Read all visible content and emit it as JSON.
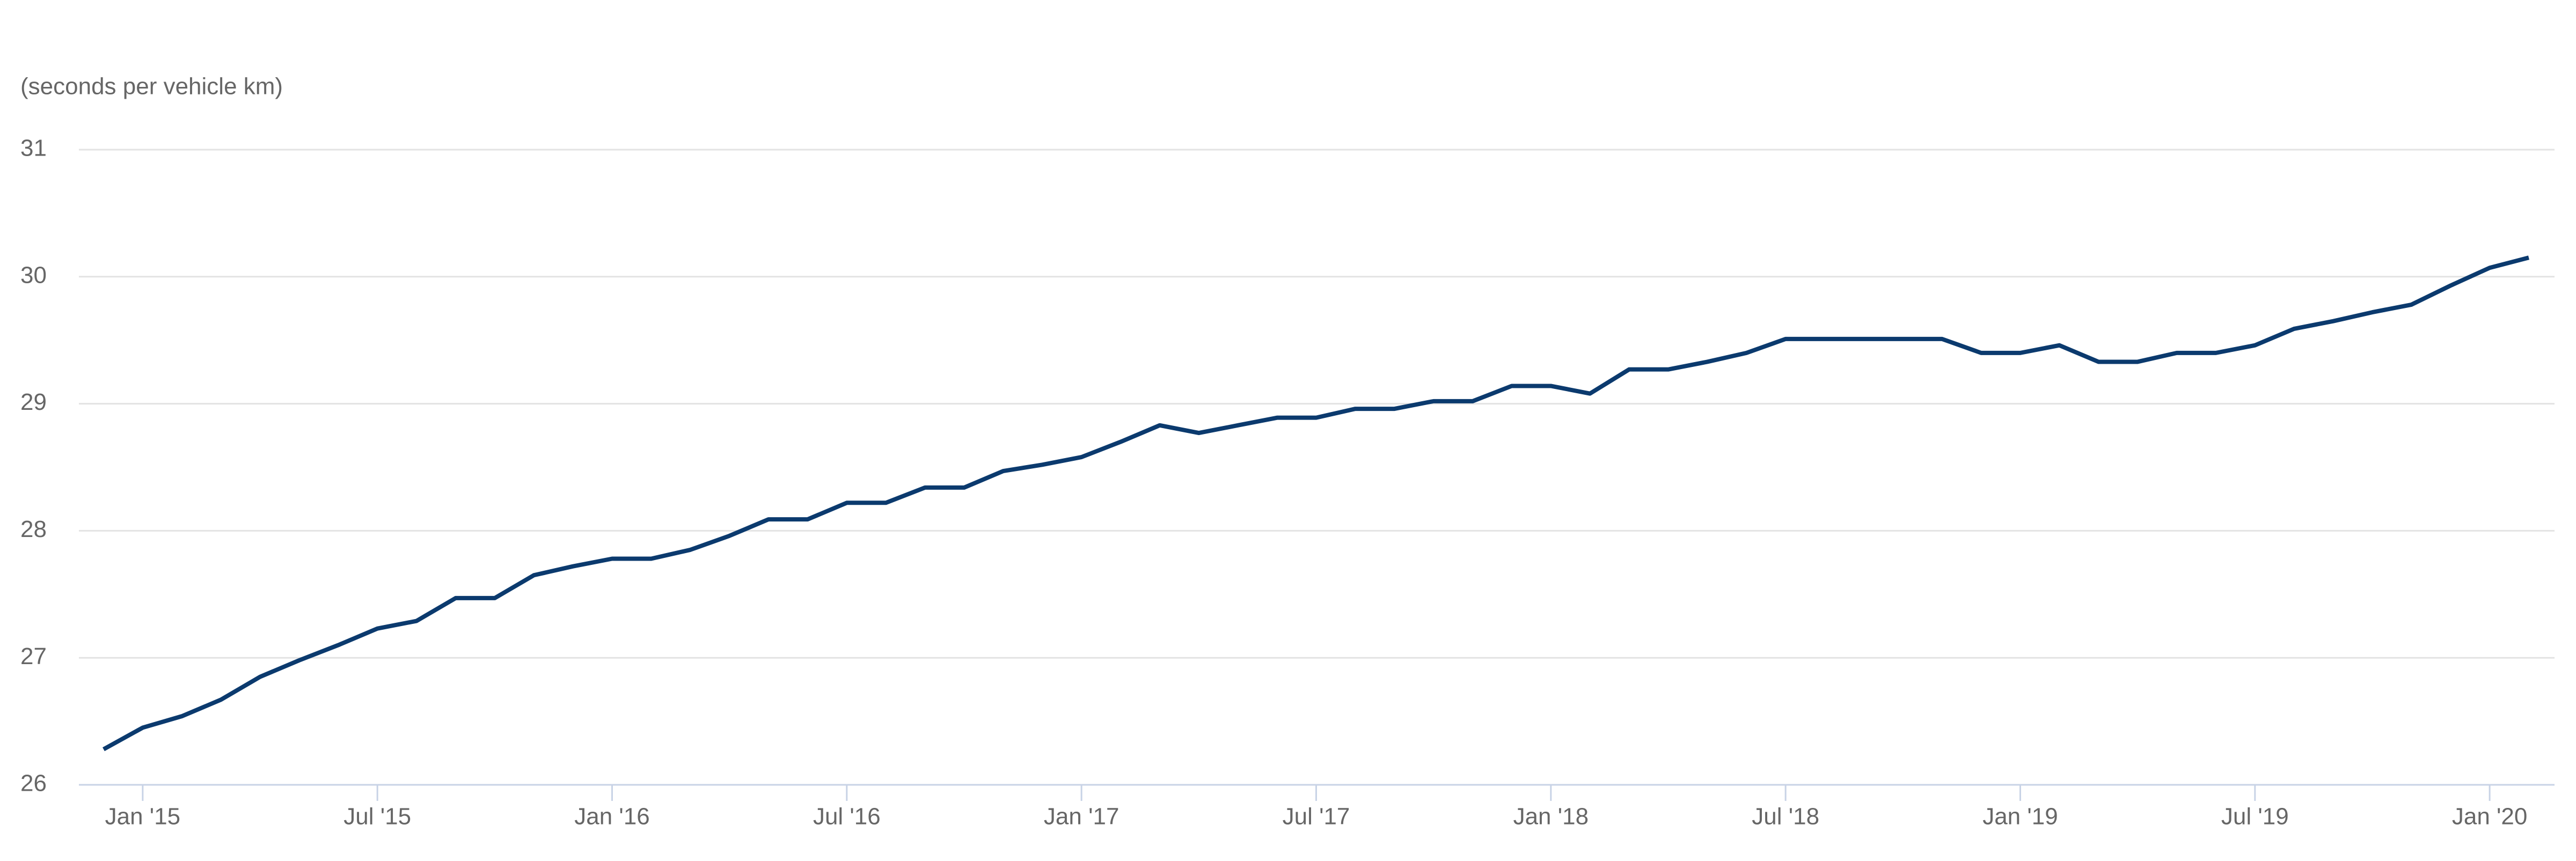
{
  "chart_data": {
    "type": "line",
    "y_axis_label": "(seconds per vehicle km)",
    "x": [
      "2014-12",
      "2015-01",
      "2015-02",
      "2015-03",
      "2015-04",
      "2015-05",
      "2015-06",
      "2015-07",
      "2015-08",
      "2015-09",
      "2015-10",
      "2015-11",
      "2015-12",
      "2016-01",
      "2016-02",
      "2016-03",
      "2016-04",
      "2016-05",
      "2016-06",
      "2016-07",
      "2016-08",
      "2016-09",
      "2016-10",
      "2016-11",
      "2016-12",
      "2017-01",
      "2017-02",
      "2017-03",
      "2017-04",
      "2017-05",
      "2017-06",
      "2017-07",
      "2017-08",
      "2017-09",
      "2017-10",
      "2017-11",
      "2017-12",
      "2018-01",
      "2018-02",
      "2018-03",
      "2018-04",
      "2018-05",
      "2018-06",
      "2018-07",
      "2018-08",
      "2018-09",
      "2018-10",
      "2018-11",
      "2018-12",
      "2019-01",
      "2019-02",
      "2019-03",
      "2019-04",
      "2019-05",
      "2019-06",
      "2019-07",
      "2019-08",
      "2019-09",
      "2019-10",
      "2019-11",
      "2019-12",
      "2020-01",
      "2020-02"
    ],
    "series": [
      {
        "color": "#0b3a6e",
        "values": [
          26.28,
          26.45,
          26.54,
          26.67,
          26.85,
          26.98,
          27.1,
          27.23,
          27.29,
          27.47,
          27.47,
          27.65,
          27.72,
          27.78,
          27.78,
          27.85,
          27.96,
          28.09,
          28.09,
          28.22,
          28.22,
          28.34,
          28.34,
          28.47,
          28.52,
          28.58,
          28.7,
          28.83,
          28.77,
          28.83,
          28.89,
          28.89,
          28.96,
          28.96,
          29.02,
          29.02,
          29.14,
          29.14,
          29.08,
          29.27,
          29.27,
          29.33,
          29.4,
          29.51,
          29.51,
          29.51,
          29.51,
          29.51,
          29.4,
          29.4,
          29.46,
          29.33,
          29.33,
          29.4,
          29.4,
          29.46,
          29.59,
          29.65,
          29.72,
          29.78,
          29.93,
          30.07,
          30.15
        ]
      }
    ],
    "ylim": [
      26,
      31
    ],
    "yticks": [
      26,
      27,
      28,
      29,
      30,
      31
    ],
    "grid": true,
    "xticks": [
      {
        "value": "2015-01",
        "label": "Jan '15"
      },
      {
        "value": "2015-07",
        "label": "Jul '15"
      },
      {
        "value": "2016-01",
        "label": "Jan '16"
      },
      {
        "value": "2016-07",
        "label": "Jul '16"
      },
      {
        "value": "2017-01",
        "label": "Jan '17"
      },
      {
        "value": "2017-07",
        "label": "Jul '17"
      },
      {
        "value": "2018-01",
        "label": "Jan '18"
      },
      {
        "value": "2018-07",
        "label": "Jul '18"
      },
      {
        "value": "2019-01",
        "label": "Jan '19"
      },
      {
        "value": "2019-07",
        "label": "Jul '19"
      },
      {
        "value": "2020-01",
        "label": "Jan '20"
      }
    ]
  }
}
